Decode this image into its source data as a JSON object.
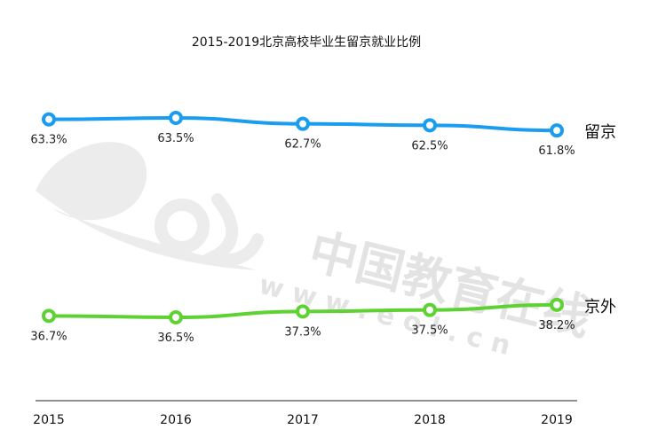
{
  "chart_data": {
    "type": "line",
    "title": "2015-2019北京高校毕业生留京就业比例",
    "xlabel": "",
    "ylabel": "",
    "x": [
      "2015",
      "2016",
      "2017",
      "2018",
      "2019"
    ],
    "ylim": [
      30,
      70
    ],
    "grid": false,
    "legend": "series names at right end of lines",
    "series": [
      {
        "name": "留京",
        "values": [
          63.3,
          63.5,
          62.7,
          62.5,
          61.8
        ],
        "labels": [
          "63.3%",
          "63.5%",
          "62.7%",
          "62.5%",
          "61.8%"
        ],
        "color": "#1a9cf0"
      },
      {
        "name": "京外",
        "values": [
          36.7,
          36.5,
          37.3,
          37.5,
          38.2
        ],
        "labels": [
          "36.7%",
          "36.5%",
          "37.3%",
          "37.5%",
          "38.2%"
        ],
        "color": "#5ed232"
      }
    ]
  },
  "watermark": {
    "logo": "eol",
    "text": "中国教育在线",
    "url": "w w w . e o l . c n"
  }
}
